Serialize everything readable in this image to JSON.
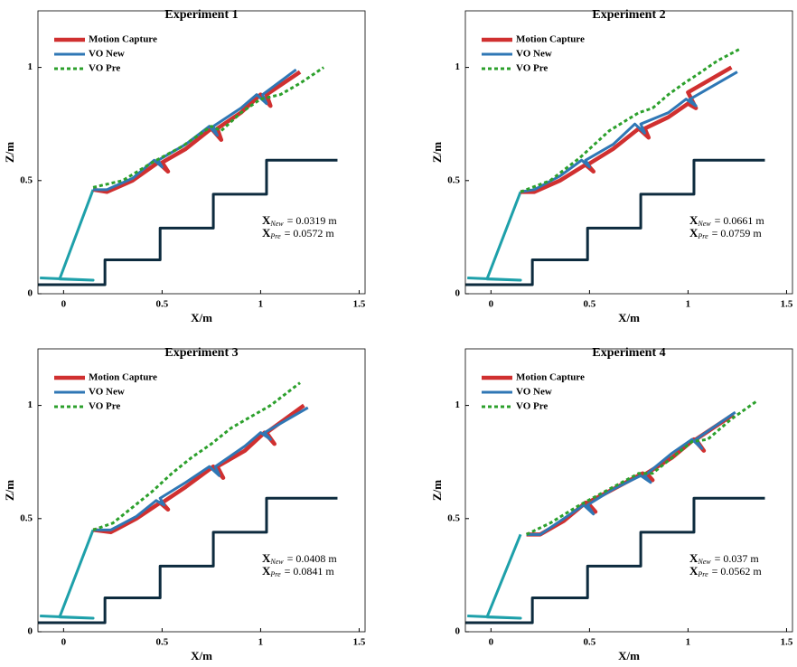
{
  "chart_data": [
    {
      "type": "line",
      "title": "Experiment 1",
      "xlabel": "X/m",
      "ylabel": "Z/m",
      "xlim": [
        -0.13,
        1.53
      ],
      "ylim": [
        0,
        1.25
      ],
      "xticks": [
        0,
        0.5,
        1,
        1.5
      ],
      "yticks": [
        0,
        0.5,
        1
      ],
      "legend": "upper left",
      "annotations": [
        {
          "symbol": "X",
          "subscript": "New",
          "text": "= 0.0319 m"
        },
        {
          "symbol": "X",
          "subscript": "Pre",
          "text": "= 0.0572 m"
        }
      ],
      "series": [
        {
          "color": "#0d2b3e",
          "x": [
            -0.13,
            0.21,
            0.21,
            0.49,
            0.49,
            0.76,
            0.76,
            1.03,
            1.03,
            1.39
          ],
          "values": [
            0.04,
            0.04,
            0.15,
            0.15,
            0.29,
            0.29,
            0.44,
            0.44,
            0.59,
            0.59
          ]
        },
        {
          "color": "#1ea0aa",
          "x": [
            -0.12,
            0.15,
            -0.02,
            0.15
          ],
          "values": [
            0.07,
            0.06,
            0.065,
            0.46
          ]
        },
        {
          "name": "Motion Capture",
          "color": "#d03030",
          "x": [
            0.15,
            0.22,
            0.35,
            0.48,
            0.53,
            0.5,
            0.62,
            0.75,
            0.8,
            0.78,
            0.9,
            1.0,
            1.05,
            1.03,
            1.2
          ],
          "values": [
            0.46,
            0.45,
            0.5,
            0.58,
            0.54,
            0.58,
            0.64,
            0.73,
            0.68,
            0.73,
            0.8,
            0.88,
            0.83,
            0.88,
            0.98
          ]
        },
        {
          "name": "VO New",
          "color": "#2f77b5",
          "x": [
            0.15,
            0.22,
            0.35,
            0.46,
            0.5,
            0.48,
            0.62,
            0.74,
            0.78,
            0.76,
            0.9,
            0.98,
            1.03,
            1.01,
            1.18
          ],
          "values": [
            0.46,
            0.46,
            0.51,
            0.59,
            0.56,
            0.59,
            0.66,
            0.74,
            0.7,
            0.74,
            0.82,
            0.88,
            0.84,
            0.88,
            0.99
          ]
        },
        {
          "name": "VO Pre",
          "color": "#2ca02c",
          "x": [
            0.15,
            0.3,
            0.45,
            0.6,
            0.75,
            0.8,
            0.9,
            1.0,
            1.1,
            1.2,
            1.32
          ],
          "values": [
            0.47,
            0.5,
            0.58,
            0.65,
            0.74,
            0.72,
            0.8,
            0.86,
            0.88,
            0.93,
            1.0
          ]
        }
      ]
    },
    {
      "type": "line",
      "title": "Experiment 2",
      "xlabel": "X/m",
      "ylabel": "Z/m",
      "xlim": [
        -0.13,
        1.53
      ],
      "ylim": [
        0,
        1.25
      ],
      "xticks": [
        0,
        0.5,
        1,
        1.5
      ],
      "yticks": [
        0,
        0.5,
        1
      ],
      "legend": "upper left",
      "annotations": [
        {
          "symbol": "X",
          "subscript": "New",
          "text": "= 0.0661 m"
        },
        {
          "symbol": "X",
          "subscript": "Pre",
          "text": "= 0.0759 m"
        }
      ],
      "series": [
        {
          "color": "#0d2b3e",
          "x": [
            -0.13,
            0.21,
            0.21,
            0.49,
            0.49,
            0.76,
            0.76,
            1.03,
            1.03,
            1.39
          ],
          "values": [
            0.04,
            0.04,
            0.15,
            0.15,
            0.29,
            0.29,
            0.44,
            0.44,
            0.59,
            0.59
          ]
        },
        {
          "color": "#1ea0aa",
          "x": [
            -0.12,
            0.15,
            -0.02,
            0.15
          ],
          "values": [
            0.07,
            0.06,
            0.065,
            0.45
          ]
        },
        {
          "name": "Motion Capture",
          "color": "#d03030",
          "x": [
            0.15,
            0.22,
            0.35,
            0.48,
            0.52,
            0.49,
            0.62,
            0.75,
            0.8,
            0.78,
            0.9,
            1.0,
            1.04,
            1.0,
            1.22
          ],
          "values": [
            0.45,
            0.45,
            0.5,
            0.57,
            0.54,
            0.57,
            0.64,
            0.73,
            0.69,
            0.73,
            0.78,
            0.84,
            0.82,
            0.89,
            1.0
          ]
        },
        {
          "name": "VO New",
          "color": "#2f77b5",
          "x": [
            0.15,
            0.22,
            0.35,
            0.46,
            0.5,
            0.48,
            0.62,
            0.73,
            0.78,
            0.76,
            0.9,
            0.99,
            1.04,
            1.01,
            1.25
          ],
          "values": [
            0.45,
            0.46,
            0.52,
            0.59,
            0.56,
            0.59,
            0.66,
            0.75,
            0.71,
            0.75,
            0.8,
            0.86,
            0.83,
            0.86,
            0.98
          ]
        },
        {
          "name": "VO Pre",
          "color": "#2ca02c",
          "x": [
            0.15,
            0.3,
            0.45,
            0.6,
            0.75,
            0.82,
            0.9,
            0.98,
            1.05,
            1.15,
            1.26
          ],
          "values": [
            0.45,
            0.5,
            0.6,
            0.72,
            0.8,
            0.82,
            0.88,
            0.93,
            0.97,
            1.03,
            1.08
          ]
        }
      ]
    },
    {
      "type": "line",
      "title": "Experiment 3",
      "xlabel": "X/m",
      "ylabel": "Z/m",
      "xlim": [
        -0.13,
        1.53
      ],
      "ylim": [
        0,
        1.25
      ],
      "xticks": [
        0,
        0.5,
        1,
        1.5
      ],
      "yticks": [
        0,
        0.5,
        1
      ],
      "legend": "upper left",
      "annotations": [
        {
          "symbol": "X",
          "subscript": "New",
          "text": "= 0.0408 m"
        },
        {
          "symbol": "X",
          "subscript": "Pre",
          "text": "= 0.0841 m"
        }
      ],
      "series": [
        {
          "color": "#0d2b3e",
          "x": [
            -0.13,
            0.21,
            0.21,
            0.49,
            0.49,
            0.76,
            0.76,
            1.03,
            1.03,
            1.39
          ],
          "values": [
            0.04,
            0.04,
            0.15,
            0.15,
            0.29,
            0.29,
            0.44,
            0.44,
            0.59,
            0.59
          ]
        },
        {
          "color": "#1ea0aa",
          "x": [
            -0.12,
            0.15,
            -0.02,
            0.15
          ],
          "values": [
            0.07,
            0.06,
            0.065,
            0.45
          ]
        },
        {
          "name": "Motion Capture",
          "color": "#d03030",
          "x": [
            0.15,
            0.24,
            0.37,
            0.49,
            0.53,
            0.5,
            0.62,
            0.76,
            0.81,
            0.78,
            0.92,
            1.02,
            1.07,
            1.03,
            1.22
          ],
          "values": [
            0.45,
            0.44,
            0.5,
            0.57,
            0.54,
            0.57,
            0.64,
            0.73,
            0.68,
            0.73,
            0.8,
            0.88,
            0.83,
            0.88,
            1.0
          ]
        },
        {
          "name": "VO New",
          "color": "#2f77b5",
          "x": [
            0.15,
            0.24,
            0.37,
            0.47,
            0.51,
            0.49,
            0.62,
            0.74,
            0.79,
            0.77,
            0.92,
            1.0,
            1.05,
            1.02,
            1.24
          ],
          "values": [
            0.45,
            0.45,
            0.51,
            0.58,
            0.56,
            0.59,
            0.66,
            0.73,
            0.69,
            0.73,
            0.82,
            0.88,
            0.85,
            0.88,
            0.99
          ]
        },
        {
          "name": "VO Pre",
          "color": "#2ca02c",
          "x": [
            0.15,
            0.25,
            0.35,
            0.45,
            0.55,
            0.65,
            0.75,
            0.85,
            0.95,
            1.05,
            1.2
          ],
          "values": [
            0.45,
            0.48,
            0.55,
            0.62,
            0.7,
            0.77,
            0.83,
            0.9,
            0.95,
            1.0,
            1.1
          ]
        }
      ]
    },
    {
      "type": "line",
      "title": "Experiment 4",
      "xlabel": "X/m",
      "ylabel": "Z/m",
      "xlim": [
        -0.13,
        1.53
      ],
      "ylim": [
        0,
        1.25
      ],
      "xticks": [
        0,
        0.5,
        1,
        1.5
      ],
      "yticks": [
        0,
        0.5,
        1
      ],
      "legend": "upper left",
      "annotations": [
        {
          "symbol": "X",
          "subscript": "New",
          "text": "= 0.037 m"
        },
        {
          "symbol": "X",
          "subscript": "Pre",
          "text": "= 0.0562 m"
        }
      ],
      "series": [
        {
          "color": "#0d2b3e",
          "x": [
            -0.13,
            0.21,
            0.21,
            0.49,
            0.49,
            0.76,
            0.76,
            1.03,
            1.03,
            1.39
          ],
          "values": [
            0.04,
            0.04,
            0.15,
            0.15,
            0.29,
            0.29,
            0.44,
            0.44,
            0.59,
            0.59
          ]
        },
        {
          "color": "#1ea0aa",
          "x": [
            -0.12,
            0.15,
            -0.02,
            0.15
          ],
          "values": [
            0.07,
            0.06,
            0.065,
            0.43
          ]
        },
        {
          "name": "Motion Capture",
          "color": "#d03030",
          "x": [
            0.18,
            0.25,
            0.37,
            0.48,
            0.53,
            0.49,
            0.62,
            0.77,
            0.82,
            0.79,
            0.92,
            1.03,
            1.08,
            1.04,
            1.23
          ],
          "values": [
            0.43,
            0.43,
            0.49,
            0.57,
            0.53,
            0.57,
            0.63,
            0.7,
            0.67,
            0.7,
            0.77,
            0.85,
            0.8,
            0.85,
            0.96
          ]
        },
        {
          "name": "VO New",
          "color": "#2f77b5",
          "x": [
            0.18,
            0.25,
            0.37,
            0.47,
            0.52,
            0.49,
            0.62,
            0.76,
            0.81,
            0.78,
            0.92,
            1.02,
            1.07,
            1.04,
            1.24
          ],
          "values": [
            0.43,
            0.43,
            0.5,
            0.56,
            0.52,
            0.56,
            0.63,
            0.69,
            0.66,
            0.69,
            0.79,
            0.85,
            0.81,
            0.85,
            0.97
          ]
        },
        {
          "name": "VO Pre",
          "color": "#2ca02c",
          "x": [
            0.18,
            0.3,
            0.45,
            0.6,
            0.75,
            0.82,
            0.92,
            1.02,
            1.1,
            1.22,
            1.35
          ],
          "values": [
            0.43,
            0.48,
            0.56,
            0.63,
            0.7,
            0.7,
            0.77,
            0.84,
            0.85,
            0.94,
            1.02
          ]
        }
      ]
    }
  ]
}
